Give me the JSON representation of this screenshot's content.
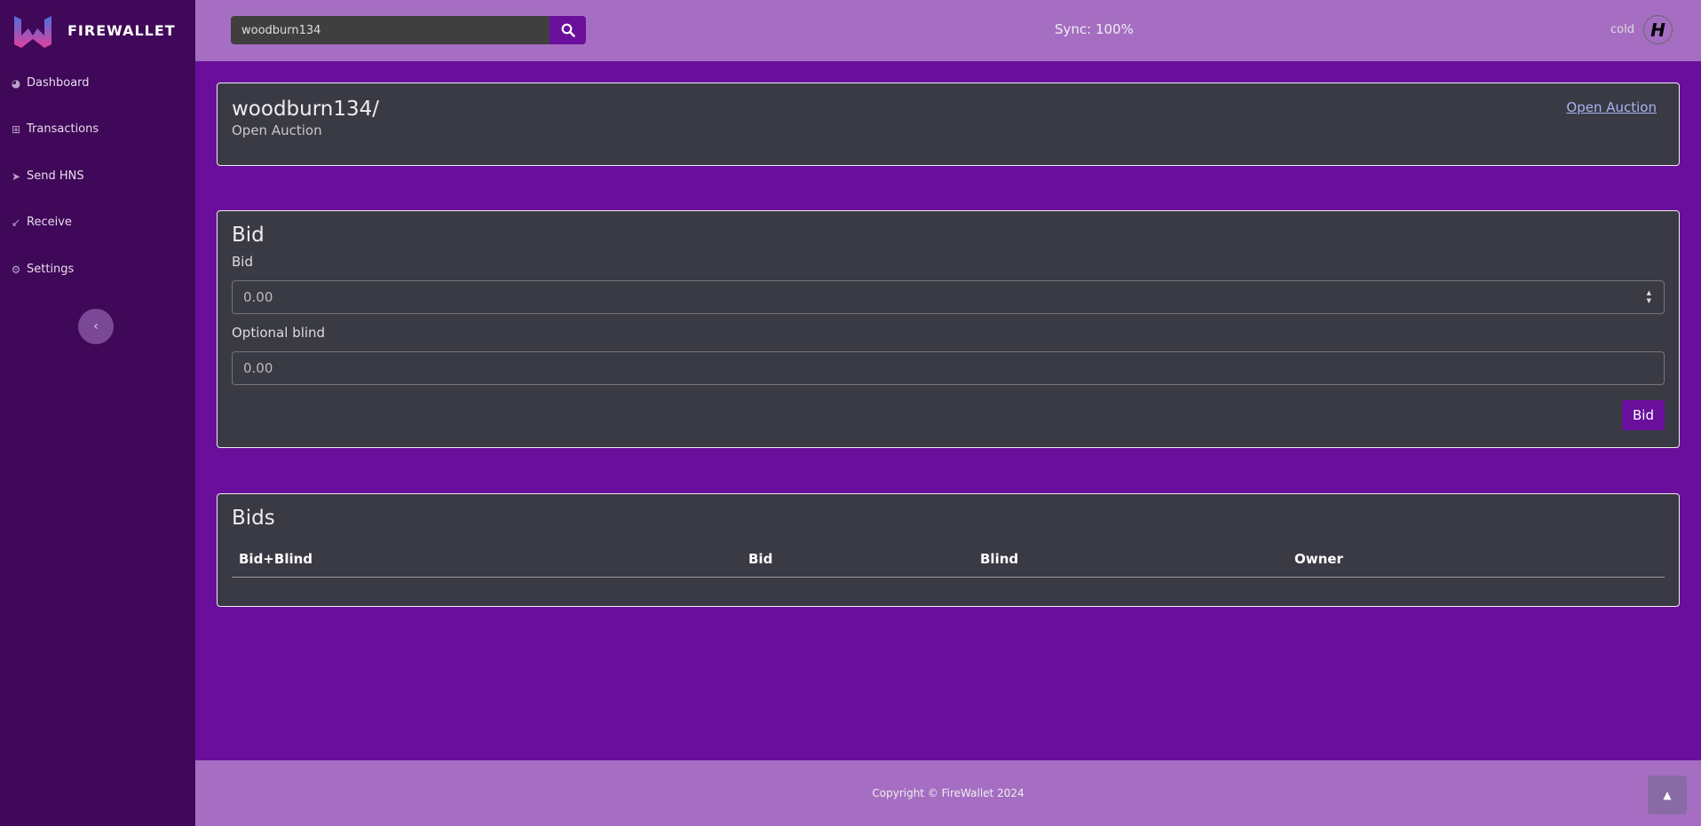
{
  "brand": {
    "name": "FIREWALLET"
  },
  "sidebar": {
    "items": [
      {
        "label": "Dashboard",
        "icon": "dashboard-icon"
      },
      {
        "label": "Transactions",
        "icon": "table-icon"
      },
      {
        "label": "Send HNS",
        "icon": "send-icon"
      },
      {
        "label": "Receive",
        "icon": "receive-arrow-icon"
      },
      {
        "label": "Settings",
        "icon": "gear-icon"
      }
    ]
  },
  "header": {
    "search_value": "woodburn134",
    "sync": "Sync: 100%",
    "user": "cold"
  },
  "domain": {
    "title": "woodburn134/",
    "status": "Open Auction",
    "link": "Open Auction"
  },
  "bid": {
    "title": "Bid",
    "bid_label": "Bid",
    "bid_placeholder": "0.00",
    "blind_label": "Optional blind",
    "blind_placeholder": "0.00",
    "button": "Bid"
  },
  "bids": {
    "title": "Bids",
    "columns": [
      "Bid+Blind",
      "Bid",
      "Blind",
      "Owner"
    ]
  },
  "footer": {
    "copyright": "Copyright © FireWallet 2024"
  },
  "colors": {
    "sidebar": "#400858",
    "header": "#a66ec3",
    "background": "#6a0f9c",
    "card": "#393a44"
  }
}
